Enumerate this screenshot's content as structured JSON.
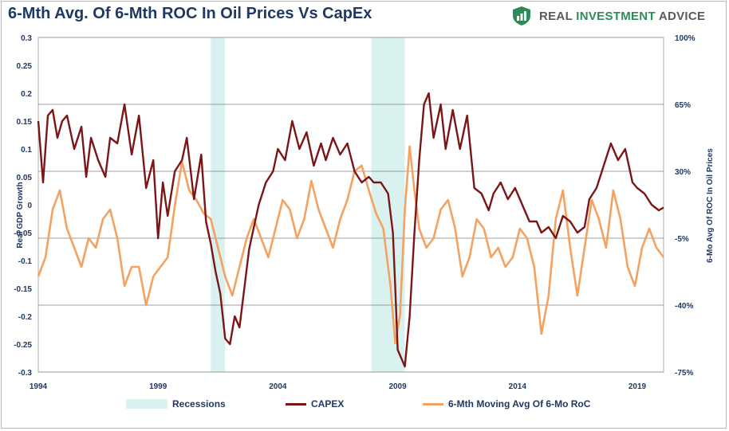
{
  "title": "6-Mth Avg. Of 6-Mth ROC In Oil Prices Vs CapEx",
  "brand": {
    "icon": "shield-chart-icon",
    "word1": "REAL",
    "word2": "INVESTMENT",
    "word3": "ADVICE"
  },
  "colors": {
    "capex": "#7b1616",
    "oil": "#f4a261",
    "recession": "#d9f2f0",
    "text": "#1f3864",
    "grid": "#7f7f7f",
    "brand_green": "#2e8b57"
  },
  "chart_data": {
    "type": "line",
    "title": "6-Mth Avg. Of 6-Mth ROC In Oil Prices Vs CapEx",
    "ylabel_left": "Real GDP Growth",
    "ylabel_right": "6-Mo Avg Of ROC In Oil Prices",
    "x_ticks": [
      1994,
      1999,
      2004,
      2009,
      2014,
      2019
    ],
    "xlim": [
      1994,
      2020.1
    ],
    "ylim_left": [
      -0.3,
      0.3
    ],
    "ylim_right": [
      -75,
      100
    ],
    "left_ticks": [
      0.3,
      0.25,
      0.2,
      0.15,
      0.1,
      0.05,
      0,
      -0.05,
      -0.1,
      -0.15,
      -0.2,
      -0.25,
      -0.3
    ],
    "right_ticks": [
      100,
      65,
      30,
      -5,
      -40,
      -75
    ],
    "right_tick_labels": [
      "100%",
      "65%",
      "30%",
      "-5%",
      "-40%",
      "-75%"
    ],
    "grid": "horizontal at right-axis ticks",
    "legend_position": "bottom",
    "recessions": [
      [
        2001.2,
        2001.8
      ],
      [
        2007.9,
        2009.3
      ]
    ],
    "legend": [
      "Recessions",
      "CAPEX",
      "6-Mth Moving Avg Of 6-Mo RoC"
    ],
    "series": [
      {
        "name": "CAPEX",
        "axis": "left",
        "x": [
          1994.0,
          1994.2,
          1994.4,
          1994.6,
          1994.8,
          1995.0,
          1995.2,
          1995.5,
          1995.8,
          1996.0,
          1996.2,
          1996.5,
          1996.8,
          1997.0,
          1997.3,
          1997.6,
          1997.9,
          1998.2,
          1998.5,
          1998.8,
          1999.0,
          1999.2,
          1999.4,
          1999.7,
          2000.0,
          2000.2,
          2000.5,
          2000.8,
          2001.0,
          2001.2,
          2001.4,
          2001.6,
          2001.8,
          2002.0,
          2002.2,
          2002.4,
          2002.6,
          2002.8,
          2003.0,
          2003.2,
          2003.5,
          2003.8,
          2004.0,
          2004.3,
          2004.6,
          2004.9,
          2005.2,
          2005.5,
          2005.8,
          2006.0,
          2006.3,
          2006.6,
          2006.9,
          2007.2,
          2007.5,
          2007.8,
          2008.0,
          2008.3,
          2008.6,
          2008.8,
          2008.9,
          2009.0,
          2009.1,
          2009.3,
          2009.5,
          2009.7,
          2009.9,
          2010.1,
          2010.3,
          2010.5,
          2010.8,
          2011.0,
          2011.3,
          2011.6,
          2011.9,
          2012.2,
          2012.5,
          2012.8,
          2013.0,
          2013.3,
          2013.6,
          2013.9,
          2014.2,
          2014.5,
          2014.8,
          2015.0,
          2015.3,
          2015.6,
          2015.9,
          2016.2,
          2016.5,
          2016.8,
          2017.0,
          2017.3,
          2017.6,
          2017.9,
          2018.2,
          2018.5,
          2018.8,
          2019.0,
          2019.3,
          2019.6,
          2019.9,
          2020.1
        ],
        "values": [
          0.15,
          0.04,
          0.16,
          0.17,
          0.12,
          0.15,
          0.16,
          0.1,
          0.14,
          0.05,
          0.12,
          0.08,
          0.05,
          0.12,
          0.11,
          0.18,
          0.09,
          0.16,
          0.03,
          0.08,
          -0.06,
          0.04,
          -0.02,
          0.06,
          0.08,
          0.12,
          0.01,
          0.09,
          -0.03,
          -0.07,
          -0.12,
          -0.16,
          -0.24,
          -0.25,
          -0.2,
          -0.22,
          -0.15,
          -0.08,
          -0.04,
          0.0,
          0.04,
          0.06,
          0.1,
          0.08,
          0.15,
          0.1,
          0.13,
          0.07,
          0.11,
          0.08,
          0.12,
          0.09,
          0.11,
          0.06,
          0.04,
          0.05,
          0.04,
          0.04,
          0.02,
          -0.05,
          -0.15,
          -0.26,
          -0.27,
          -0.29,
          -0.2,
          -0.05,
          0.08,
          0.18,
          0.2,
          0.12,
          0.18,
          0.1,
          0.17,
          0.1,
          0.16,
          0.03,
          0.02,
          -0.01,
          0.02,
          0.04,
          0.01,
          0.03,
          0.0,
          -0.03,
          -0.03,
          -0.05,
          -0.04,
          -0.06,
          -0.02,
          -0.03,
          -0.05,
          -0.04,
          0.01,
          0.03,
          0.07,
          0.11,
          0.08,
          0.1,
          0.04,
          0.03,
          0.02,
          0.0,
          -0.01,
          -0.005
        ]
      },
      {
        "name": "6-Mth Moving Avg Of 6-Mo RoC",
        "axis": "right",
        "x": [
          1994.0,
          1994.3,
          1994.6,
          1994.9,
          1995.2,
          1995.5,
          1995.8,
          1996.1,
          1996.4,
          1996.7,
          1997.0,
          1997.3,
          1997.6,
          1997.9,
          1998.2,
          1998.5,
          1998.8,
          1999.1,
          1999.4,
          1999.7,
          2000.0,
          2000.3,
          2000.6,
          2000.9,
          2001.2,
          2001.5,
          2001.8,
          2002.1,
          2002.4,
          2002.7,
          2003.0,
          2003.3,
          2003.6,
          2003.9,
          2004.2,
          2004.5,
          2004.8,
          2005.1,
          2005.4,
          2005.7,
          2006.0,
          2006.3,
          2006.6,
          2006.9,
          2007.2,
          2007.5,
          2007.8,
          2008.1,
          2008.4,
          2008.7,
          2008.9,
          2009.1,
          2009.3,
          2009.5,
          2009.7,
          2009.9,
          2010.2,
          2010.5,
          2010.8,
          2011.1,
          2011.4,
          2011.7,
          2012.0,
          2012.3,
          2012.6,
          2012.9,
          2013.2,
          2013.5,
          2013.8,
          2014.1,
          2014.4,
          2014.7,
          2015.0,
          2015.3,
          2015.6,
          2015.9,
          2016.2,
          2016.5,
          2016.8,
          2017.1,
          2017.4,
          2017.7,
          2018.0,
          2018.3,
          2018.6,
          2018.9,
          2019.2,
          2019.5,
          2019.8,
          2020.1
        ],
        "values": [
          -25,
          -15,
          10,
          20,
          0,
          -10,
          -20,
          -5,
          -10,
          5,
          10,
          -5,
          -30,
          -20,
          -20,
          -40,
          -25,
          -20,
          -15,
          12,
          35,
          20,
          15,
          8,
          5,
          -10,
          -25,
          -35,
          -20,
          -5,
          5,
          -5,
          -15,
          0,
          15,
          10,
          -5,
          5,
          25,
          10,
          0,
          -10,
          5,
          15,
          30,
          33,
          20,
          8,
          0,
          -30,
          -60,
          -45,
          10,
          43,
          20,
          0,
          -10,
          -5,
          10,
          15,
          0,
          -25,
          -15,
          5,
          0,
          -15,
          -10,
          -20,
          -15,
          0,
          -5,
          -20,
          -55,
          -35,
          5,
          20,
          -10,
          -35,
          -10,
          15,
          5,
          -10,
          20,
          5,
          -20,
          -30,
          -10,
          0,
          -10,
          -15
        ]
      }
    ]
  }
}
